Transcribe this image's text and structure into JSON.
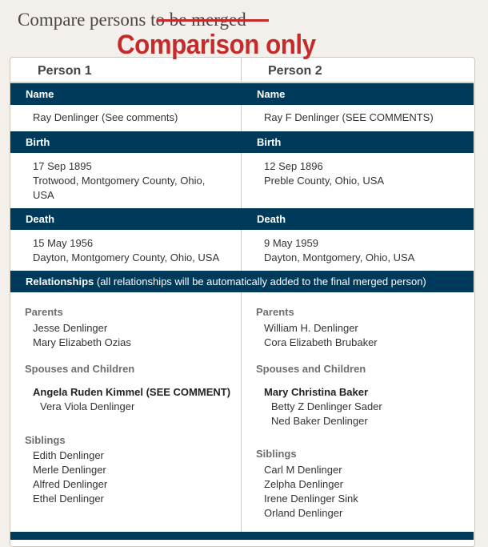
{
  "page": {
    "title": "Compare persons",
    "title_struck": "to be merged",
    "stamp": "Comparison only",
    "accent": "#003a5b",
    "stamp_color": "#c62b2b"
  },
  "columns": [
    "Person 1",
    "Person 2"
  ],
  "sections": {
    "name": "Name",
    "birth": "Birth",
    "death": "Death",
    "relationships": "Relationships",
    "relationships_note": "(all relationships will be automatically added to the final merged person)",
    "parents": "Parents",
    "spouses": "Spouses and Children",
    "siblings": "Siblings"
  },
  "person1": {
    "name": "Ray Denlinger (See comments)",
    "birth_date": "17 Sep 1895",
    "birth_place": [
      "Trotwood, Montgomery County, Ohio,",
      "USA"
    ],
    "death_date": "15 May 1956",
    "death_place": "Dayton, Montgomery County, Ohio, USA",
    "parents": [
      "Jesse Denlinger",
      "Mary Elizabeth Ozias"
    ],
    "spouse": "Angela Ruden Kimmel (SEE COMMENT)",
    "children": [
      "Vera Viola Denlinger"
    ],
    "siblings": [
      "Edith Denlinger",
      "Merle Denlinger",
      "Alfred Denlinger",
      "Ethel Denlinger"
    ]
  },
  "person2": {
    "name": "Ray F Denlinger (SEE COMMENTS)",
    "birth_date": "12 Sep 1896",
    "birth_place": "Preble County, Ohio, USA",
    "death_date": "9 May 1959",
    "death_place": "Dayton, Montgomery, Ohio, USA",
    "parents": [
      "William H. Denlinger",
      "Cora Elizabeth Brubaker"
    ],
    "spouse": "Mary Christina Baker",
    "children": [
      "Betty Z Denlinger Sader",
      "Ned Baker Denlinger"
    ],
    "siblings": [
      "Carl M Denlinger",
      "Zelpha Denlinger",
      "Irene Denlinger Sink",
      "Orland Denlinger"
    ]
  }
}
